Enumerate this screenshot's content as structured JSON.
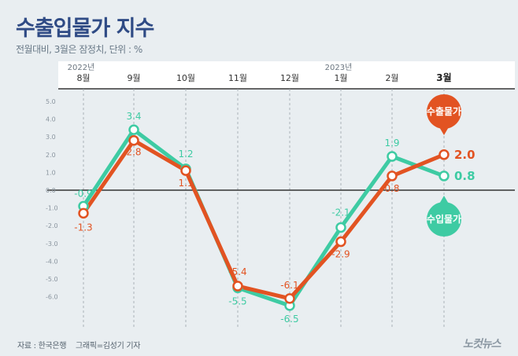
{
  "title": "수출입물가 지수",
  "subtitle": "전월대비, 3월은 잠정치, 단위 : %",
  "source": "자료 : 한국은행",
  "credit": "그래픽=김성기 기자",
  "logo": "노컷뉴스",
  "colors": {
    "export": "#e25322",
    "import": "#3ecba3",
    "title": "#2f4b85",
    "axis": "#333333",
    "grid": "#9aa3ab"
  },
  "chart_data": {
    "type": "line",
    "title": "수출입물가 지수",
    "categories": [
      "8월",
      "9월",
      "10월",
      "11월",
      "12월",
      "1월",
      "2월",
      "3월"
    ],
    "year_labels": [
      {
        "category": "8월",
        "label": "2022년"
      },
      {
        "category": "1월",
        "label": "2023년"
      }
    ],
    "series": [
      {
        "name": "수출물가",
        "color": "#e25322",
        "values": [
          -1.3,
          2.8,
          1.1,
          -5.4,
          -6.1,
          -2.9,
          0.8,
          2.0
        ]
      },
      {
        "name": "수입물가",
        "color": "#3ecba3",
        "values": [
          -0.9,
          3.4,
          1.2,
          -5.5,
          -6.5,
          -2.1,
          1.9,
          0.8
        ]
      }
    ],
    "value_labels": [
      [
        "-1.3",
        "2.8",
        "1.1",
        "-5.4",
        "-6.1",
        "-2.9",
        "0.8",
        "2.0"
      ],
      [
        "-0.9",
        "3.4",
        "1.2",
        "-5.5",
        "-6.5",
        "-2.1",
        "1.9",
        "0.8"
      ]
    ],
    "yticks": [
      "5.0",
      "4.0",
      "3.0",
      "2.0",
      "1.0",
      "0.0",
      "-1.0",
      "-2.0",
      "-3.0",
      "-4.0",
      "-5.0",
      "-6.0"
    ],
    "ytick_values": [
      5,
      4,
      3,
      2,
      1,
      0,
      -1,
      -2,
      -3,
      -4,
      -5,
      -6
    ],
    "ylim": [
      -6.5,
      5.5
    ],
    "xlabel": "",
    "ylabel": "",
    "grid": "vertical dashed",
    "legend": "callouts at last point"
  }
}
